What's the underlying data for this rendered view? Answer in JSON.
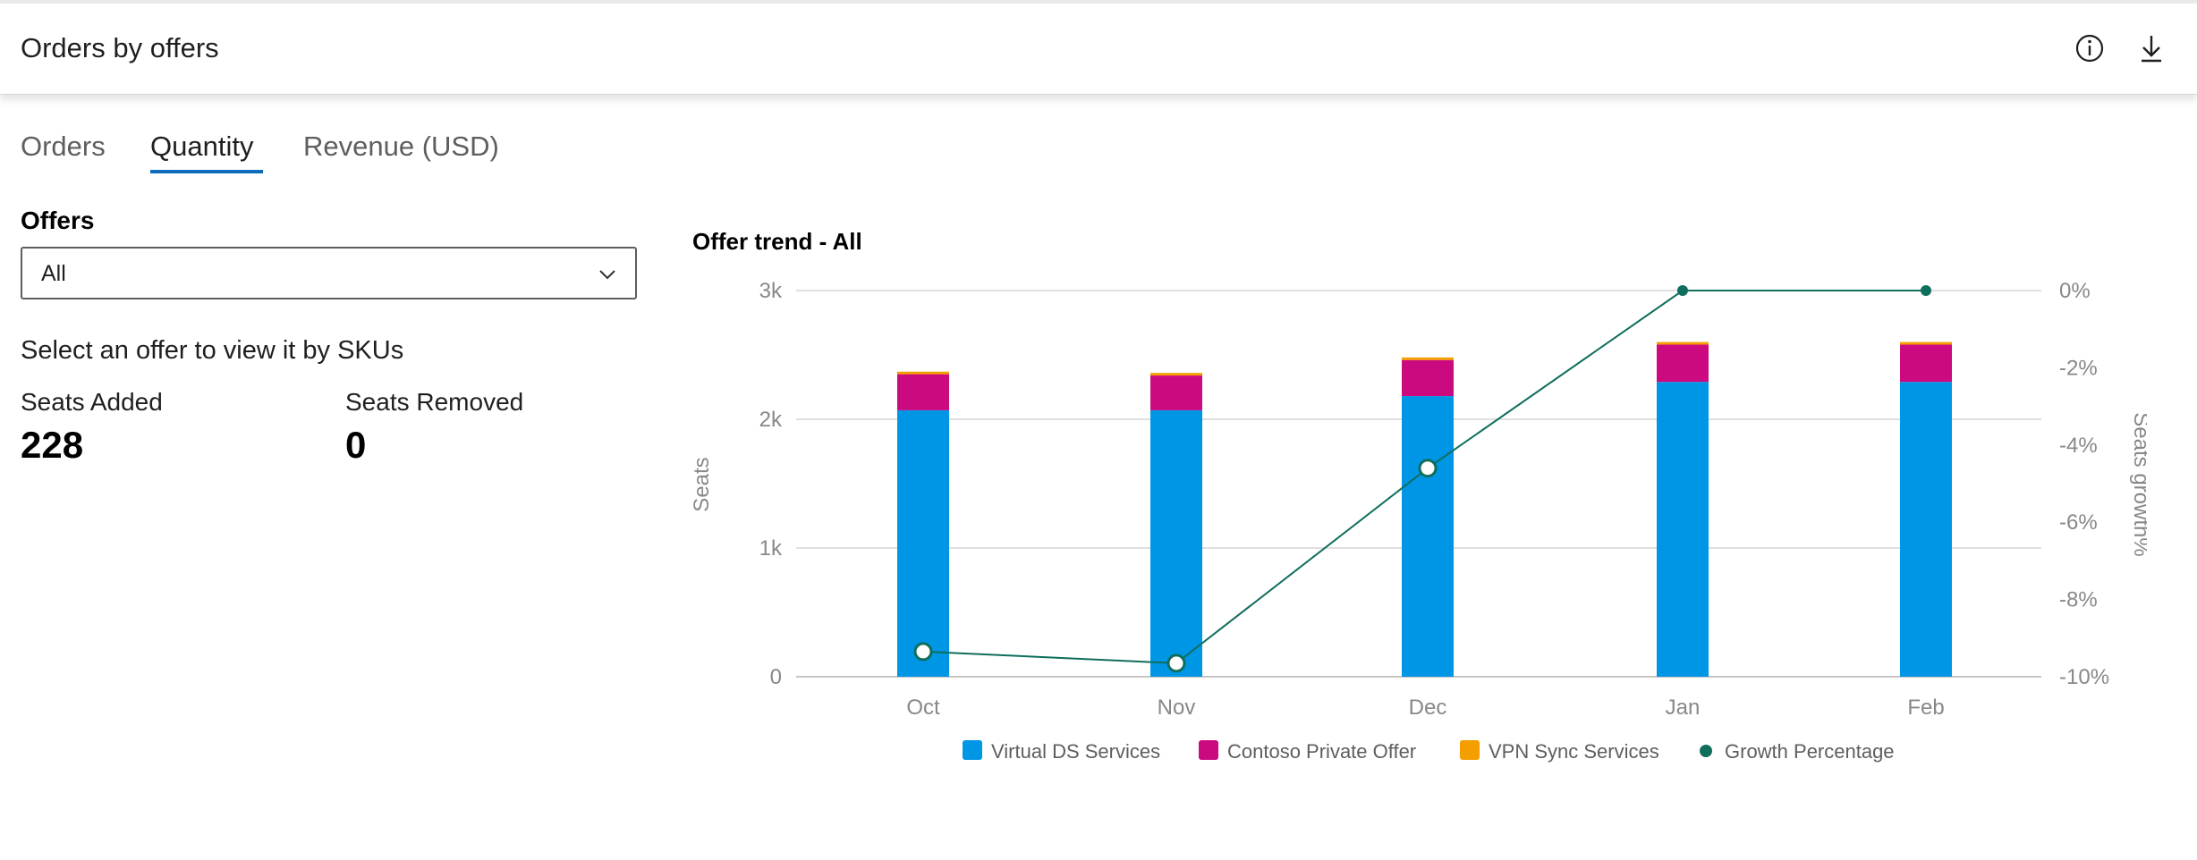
{
  "header": {
    "title": "Orders by offers",
    "info_icon": "info-icon",
    "download_icon": "download-icon"
  },
  "tabs": [
    {
      "label": "Orders",
      "active": false
    },
    {
      "label": "Quantity",
      "active": true
    },
    {
      "label": "Revenue (USD)",
      "active": false
    }
  ],
  "filters": {
    "offers_label": "Offers",
    "offers_selected": "All"
  },
  "hint": "Select an offer to view it by SKUs",
  "stats": {
    "seats_added_label": "Seats Added",
    "seats_added_value": "228",
    "seats_removed_label": "Seats Removed",
    "seats_removed_value": "0"
  },
  "chart_data": {
    "type": "bar",
    "stacked": true,
    "title": "Offer trend - All",
    "categories": [
      "Oct",
      "Nov",
      "Dec",
      "Jan",
      "Feb"
    ],
    "ylabel": "Seats",
    "ylim": [
      0,
      3000
    ],
    "yticks": [
      "0",
      "1k",
      "2k",
      "3k"
    ],
    "y2label": "Seats growth%",
    "y2lim": [
      -10,
      0
    ],
    "y2ticks": [
      "-10%",
      "-8%",
      "-6%",
      "-4%",
      "-2%",
      "0%"
    ],
    "grid": true,
    "legend_position": "bottom",
    "series": [
      {
        "name": "Virtual DS Services",
        "color": "#0096e6",
        "values": [
          2070,
          2070,
          2180,
          2290,
          2290
        ]
      },
      {
        "name": "Contoso Private Offer",
        "color": "#cc0a80",
        "values": [
          280,
          270,
          280,
          290,
          290
        ]
      },
      {
        "name": "VPN Sync Services",
        "color": "#f59e00",
        "values": [
          20,
          20,
          20,
          20,
          20
        ]
      }
    ],
    "line_series": {
      "name": "Growth Percentage",
      "color": "#0f6e5c",
      "axis": "right",
      "values": [
        -9.35,
        -9.65,
        -4.6,
        0,
        0
      ]
    }
  }
}
